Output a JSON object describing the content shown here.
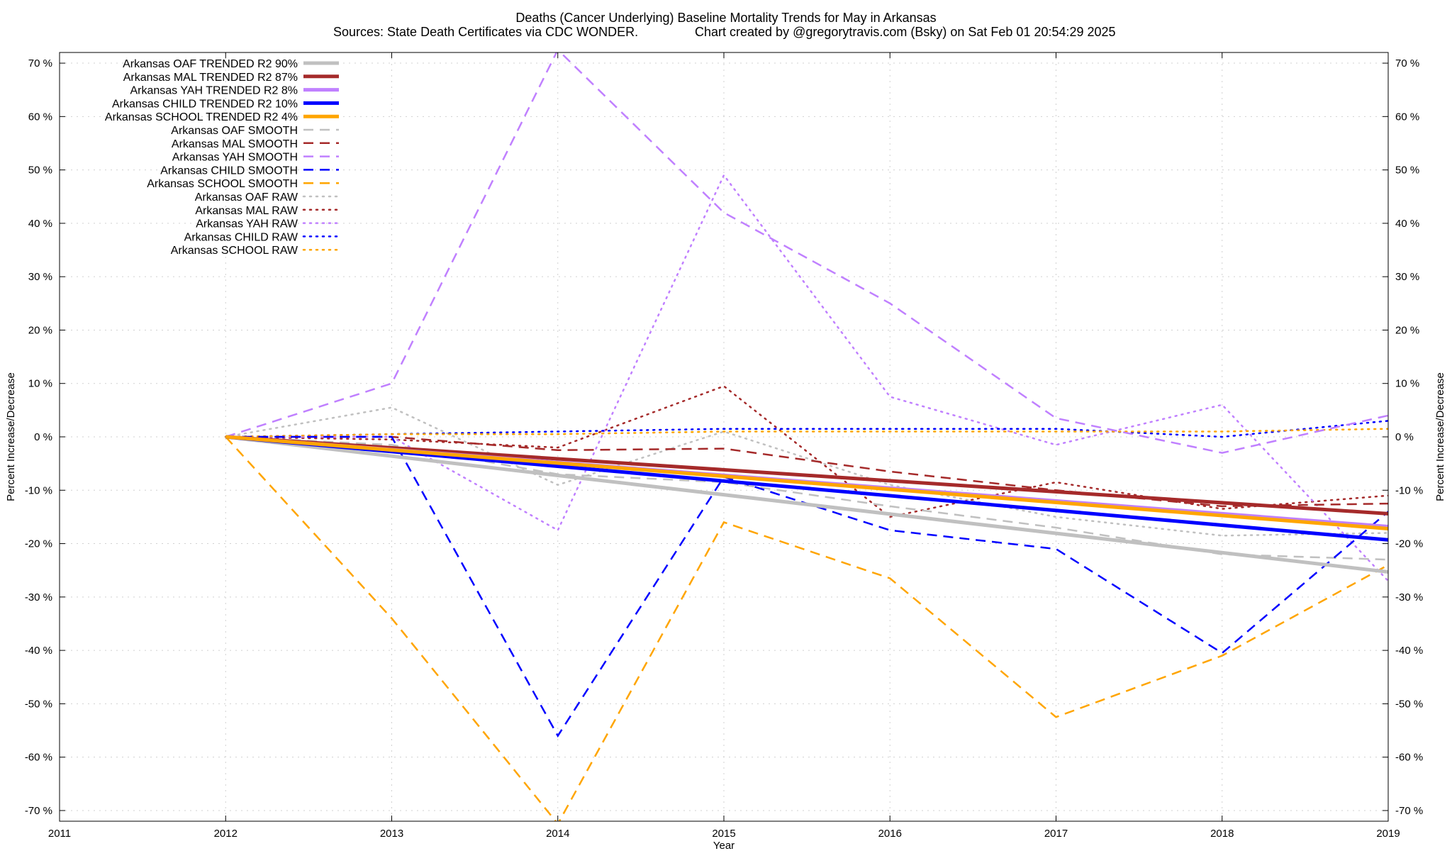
{
  "chart_data": {
    "type": "line",
    "title": "Deaths (Cancer Underlying)  Baseline Mortality Trends for May in Arkansas",
    "subtitle_left": "Sources: State Death Certificates via CDC WONDER.",
    "subtitle_right": "Chart created by @gregorytravis.com (Bsky) on Sat Feb 01 20:54:29 2025",
    "xlabel": "Year",
    "ylabel_left": "Percent Increase/Decrease",
    "ylabel_right": "Percent Increase/Decrease",
    "xlim": [
      2011,
      2019
    ],
    "ylim": [
      -72,
      72
    ],
    "x_ticks": [
      "2011",
      "2012",
      "2013",
      "2014",
      "2015",
      "2016",
      "2017",
      "2018",
      "2019"
    ],
    "y_ticks_left": [
      "-70 %",
      "-60 %",
      "-50 %",
      "-40 %",
      "-30 %",
      "-20 %",
      "-10 %",
      "0 %",
      "10 %",
      "20 %",
      "30 %",
      "40 %",
      "50 %",
      "60 %",
      "70 %"
    ],
    "y_ticks_right": [
      "-70 %",
      "-60 %",
      "-50 %",
      "-40 %",
      "-30 %",
      "-20 %",
      "-10 %",
      "0 %",
      "10 %",
      "20 %",
      "30 %",
      "40 %",
      "50 %",
      "60 %",
      "70 %"
    ],
    "grid": true,
    "legend_position": "top-left",
    "series": [
      {
        "name": "Arkansas OAF TRENDED R2  90%",
        "style": "solid",
        "color": "#c0c0c0",
        "x": [
          2012,
          2019
        ],
        "y": [
          0,
          -25.3
        ]
      },
      {
        "name": "Arkansas MAL TRENDED R2  87%",
        "style": "solid",
        "color": "#a52a2a",
        "x": [
          2012,
          2019
        ],
        "y": [
          0,
          -14.4
        ]
      },
      {
        "name": "Arkansas YAH TRENDED R2   8%",
        "style": "solid",
        "color": "#c080ff",
        "x": [
          2012,
          2019
        ],
        "y": [
          0,
          -16.8
        ]
      },
      {
        "name": "Arkansas CHILD TRENDED R2  10%",
        "style": "solid",
        "color": "#0000ff",
        "x": [
          2012,
          2019
        ],
        "y": [
          0,
          -19.3
        ]
      },
      {
        "name": "Arkansas SCHOOL TRENDED R2   4%",
        "style": "solid",
        "color": "#ffa500",
        "x": [
          2012,
          2019
        ],
        "y": [
          0,
          -17.2
        ]
      },
      {
        "name": "Arkansas OAF SMOOTH",
        "style": "dashed",
        "color": "#c0c0c0",
        "x": [
          2012,
          2013,
          2014,
          2015,
          2016,
          2017,
          2018,
          2019
        ],
        "y": [
          0,
          -1.5,
          -7,
          -8.5,
          -13,
          -17,
          -22,
          -23
        ]
      },
      {
        "name": "Arkansas MAL SMOOTH",
        "style": "dashed",
        "color": "#a52a2a",
        "x": [
          2012,
          2013,
          2014,
          2015,
          2016,
          2017,
          2018,
          2019
        ],
        "y": [
          0,
          0,
          -2.5,
          -2.2,
          -6.5,
          -10,
          -13,
          -12.5
        ]
      },
      {
        "name": "Arkansas YAH SMOOTH",
        "style": "dashed",
        "color": "#c080ff",
        "x": [
          2012,
          2013,
          2014,
          2015,
          2016,
          2017,
          2018,
          2019
        ],
        "y": [
          0,
          10,
          72.5,
          42,
          25,
          3.5,
          -3,
          4
        ]
      },
      {
        "name": "Arkansas CHILD SMOOTH",
        "style": "dashed",
        "color": "#0000ff",
        "x": [
          2012,
          2013,
          2014,
          2015,
          2016,
          2017,
          2018,
          2019
        ],
        "y": [
          0,
          0,
          -56,
          -7.5,
          -17.5,
          -21,
          -40.5,
          -14
        ]
      },
      {
        "name": "Arkansas SCHOOL SMOOTH",
        "style": "dashed",
        "color": "#ffa500",
        "x": [
          2012,
          2013,
          2014,
          2015,
          2016,
          2017,
          2018,
          2019
        ],
        "y": [
          0,
          -34,
          -72.5,
          -16,
          -26.5,
          -52.5,
          -41,
          -24
        ]
      },
      {
        "name": "Arkansas OAF RAW",
        "style": "dotted",
        "color": "#c0c0c0",
        "x": [
          2012,
          2013,
          2014,
          2015,
          2016,
          2017,
          2018,
          2019
        ],
        "y": [
          0,
          5.5,
          -9,
          1,
          -9,
          -15,
          -18.5,
          -18
        ]
      },
      {
        "name": "Arkansas MAL RAW",
        "style": "dotted",
        "color": "#a52a2a",
        "x": [
          2012,
          2013,
          2014,
          2015,
          2016,
          2017,
          2018,
          2019
        ],
        "y": [
          0,
          -0.5,
          -2,
          9.5,
          -15,
          -8.5,
          -13.5,
          -11
        ]
      },
      {
        "name": "Arkansas YAH RAW",
        "style": "dotted",
        "color": "#c080ff",
        "x": [
          2012,
          2013,
          2014,
          2015,
          2016,
          2017,
          2018,
          2019
        ],
        "y": [
          0,
          0,
          -17.5,
          49,
          7.5,
          -1.5,
          6,
          -27
        ]
      },
      {
        "name": "Arkansas CHILD RAW",
        "style": "dotted",
        "color": "#0000ff",
        "x": [
          2012,
          2013,
          2014,
          2015,
          2016,
          2017,
          2018,
          2019
        ],
        "y": [
          0,
          0.5,
          1,
          1.5,
          1.5,
          1.5,
          0,
          3
        ]
      },
      {
        "name": "Arkansas SCHOOL RAW",
        "style": "dotted",
        "color": "#ffa500",
        "x": [
          2012,
          2013,
          2014,
          2015,
          2016,
          2017,
          2018,
          2019
        ],
        "y": [
          0,
          0.5,
          0.5,
          1,
          1,
          1,
          1,
          1.5
        ]
      }
    ]
  }
}
